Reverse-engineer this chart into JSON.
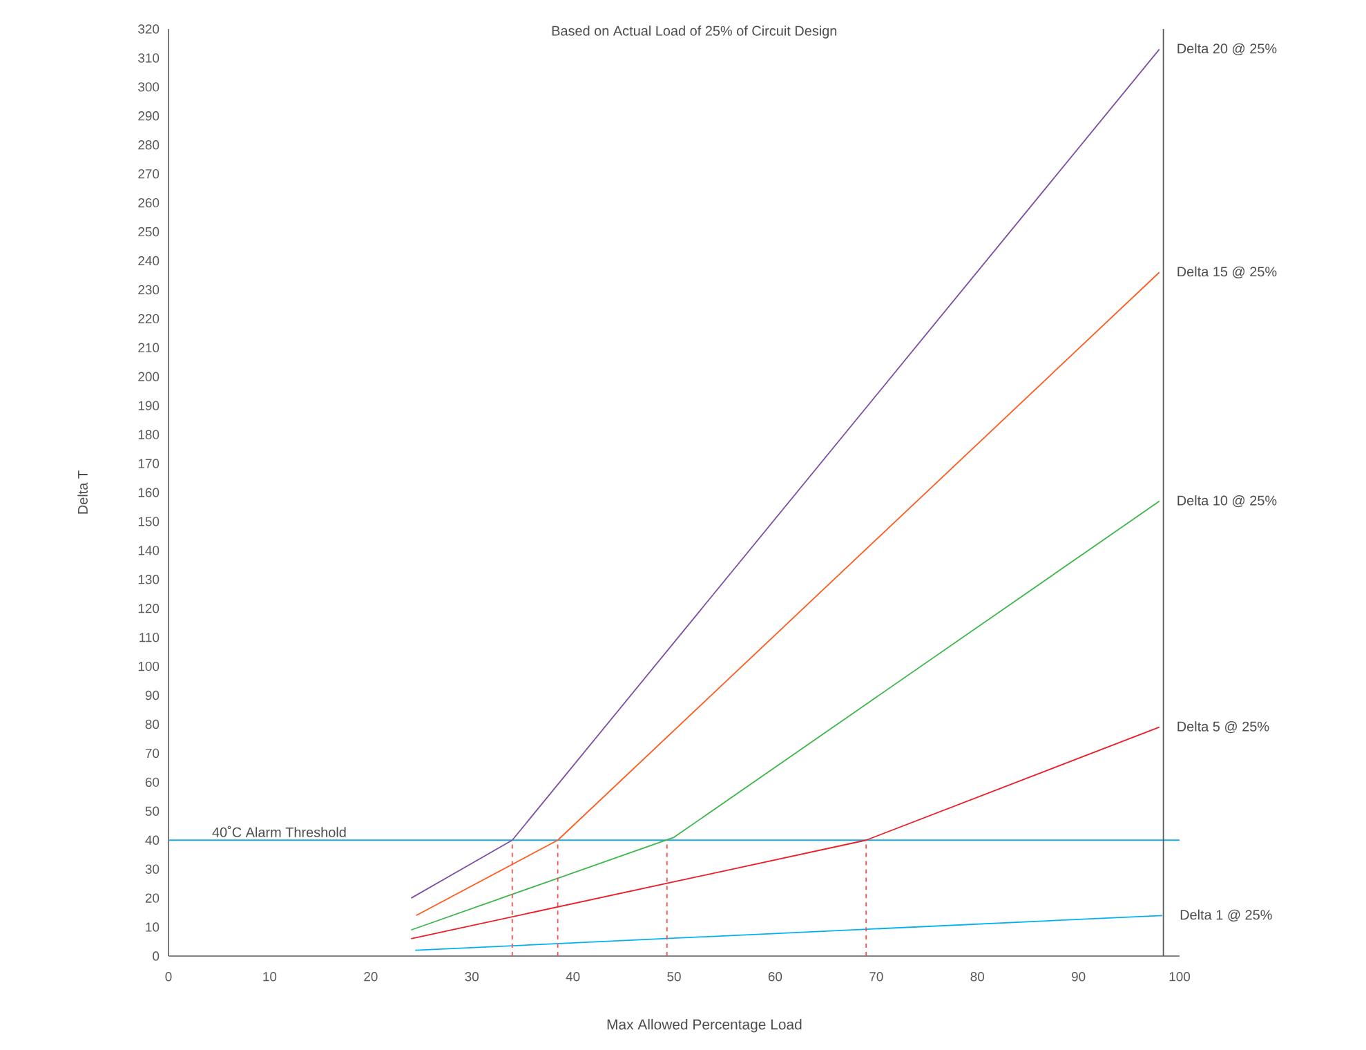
{
  "chart_data": {
    "type": "line",
    "title": "Based on Actual Load of 25% of Circuit Design",
    "xlabel": "Max Allowed Percentage Load",
    "ylabel": "Delta T",
    "xlim": [
      0,
      100
    ],
    "ylim": [
      0,
      320
    ],
    "xticks": [
      0,
      10,
      20,
      30,
      40,
      50,
      60,
      70,
      80,
      90,
      100
    ],
    "yticks": [
      0,
      10,
      20,
      30,
      40,
      50,
      60,
      70,
      80,
      90,
      100,
      110,
      120,
      130,
      140,
      150,
      160,
      170,
      180,
      190,
      200,
      210,
      220,
      230,
      240,
      250,
      260,
      270,
      280,
      290,
      300,
      310,
      320
    ],
    "grid": false,
    "marker": "none",
    "line_style": "solid",
    "series": [
      {
        "name": "Delta 20 @ 25%",
        "color": "#7e4ea3",
        "x": [
          24,
          34,
          98
        ],
        "values": [
          20,
          40,
          313
        ]
      },
      {
        "name": "Delta 15 @ 25%",
        "color": "#ff5b1f",
        "x": [
          24.5,
          38.5,
          98
        ],
        "values": [
          14,
          40,
          236
        ]
      },
      {
        "name": "Delta 10 @ 25%",
        "color": "#3cb64a",
        "x": [
          24,
          50,
          98
        ],
        "values": [
          9,
          41,
          157
        ]
      },
      {
        "name": "Delta 5 @ 25%",
        "color": "#ee1c25",
        "x": [
          24,
          69,
          98
        ],
        "values": [
          6,
          40,
          79
        ]
      },
      {
        "name": "Delta 1 @ 25%",
        "color": "#00b0f0",
        "x": [
          24.4,
          98.3
        ],
        "values": [
          2,
          14
        ]
      },
      {
        "color": "#ff4d4d",
        "line_style": "dashed",
        "x": [
          34,
          34
        ],
        "values": [
          0,
          40
        ]
      },
      {
        "color": "#ff4d4d",
        "line_style": "dashed",
        "x": [
          38.5,
          38.5
        ],
        "values": [
          0,
          40
        ]
      },
      {
        "color": "#ff4d4d",
        "line_style": "dashed",
        "x": [
          49.3,
          49.3
        ],
        "values": [
          0,
          40
        ]
      },
      {
        "color": "#ff4d4d",
        "line_style": "dashed",
        "x": [
          69,
          69
        ],
        "values": [
          0,
          40
        ]
      }
    ],
    "ref_lines": [
      {
        "axis": "y",
        "value": 40,
        "label": "40˚C Alarm Threshold",
        "color": "#1aa7e8"
      },
      {
        "axis": "x",
        "value": 98.4,
        "color": "#595959"
      }
    ]
  }
}
